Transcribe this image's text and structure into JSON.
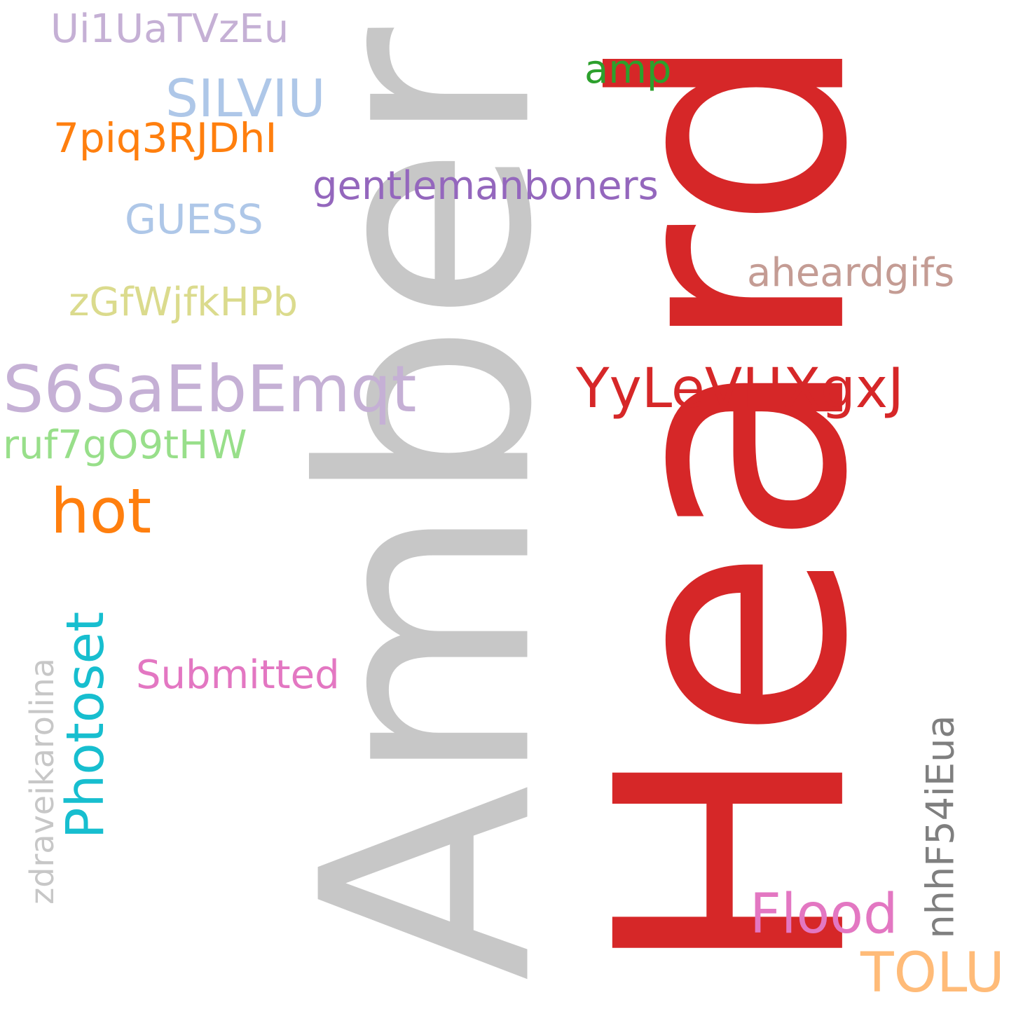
{
  "words": {
    "amber": {
      "text": "Amber",
      "color": "#c7c7c7"
    },
    "heard": {
      "text": "Heard",
      "color": "#d62728"
    },
    "ui1": {
      "text": "Ui1UaTVzEu",
      "color": "#c5b0d5"
    },
    "silviu": {
      "text": "SILVIU",
      "color": "#aec7e8"
    },
    "amp": {
      "text": "amp",
      "color": "#2ca02c"
    },
    "piq": {
      "text": "7piq3RJDhI",
      "color": "#ff7f0e"
    },
    "gentlemanboners": {
      "text": "gentlemanboners",
      "color": "#9467bd"
    },
    "guess": {
      "text": "GUESS",
      "color": "#aec7e8"
    },
    "aheardgifs": {
      "text": "aheardgifs",
      "color": "#c49c94"
    },
    "zgf": {
      "text": "zGfWjfkHPb",
      "color": "#dbdb8d"
    },
    "s6": {
      "text": "S6SaEbEmqt",
      "color": "#c5b0d5"
    },
    "yy": {
      "text": "YyLeVHXgxJ",
      "color": "#d62728"
    },
    "ruf": {
      "text": "ruf7gO9tHW",
      "color": "#98df8a"
    },
    "hot": {
      "text": "hot",
      "color": "#ff7f0e"
    },
    "photoset": {
      "text": "Photoset",
      "color": "#17becf"
    },
    "zdraveikarolina": {
      "text": "zdraveikarolina",
      "color": "#c7c7c7"
    },
    "submitted": {
      "text": "Submitted",
      "color": "#e377c2"
    },
    "nhh": {
      "text": "nhhF54iEua",
      "color": "#7f7f7f"
    },
    "flood": {
      "text": "Flood",
      "color": "#e377c2"
    },
    "tolu": {
      "text": "TOLU",
      "color": "#ffbb78"
    }
  }
}
